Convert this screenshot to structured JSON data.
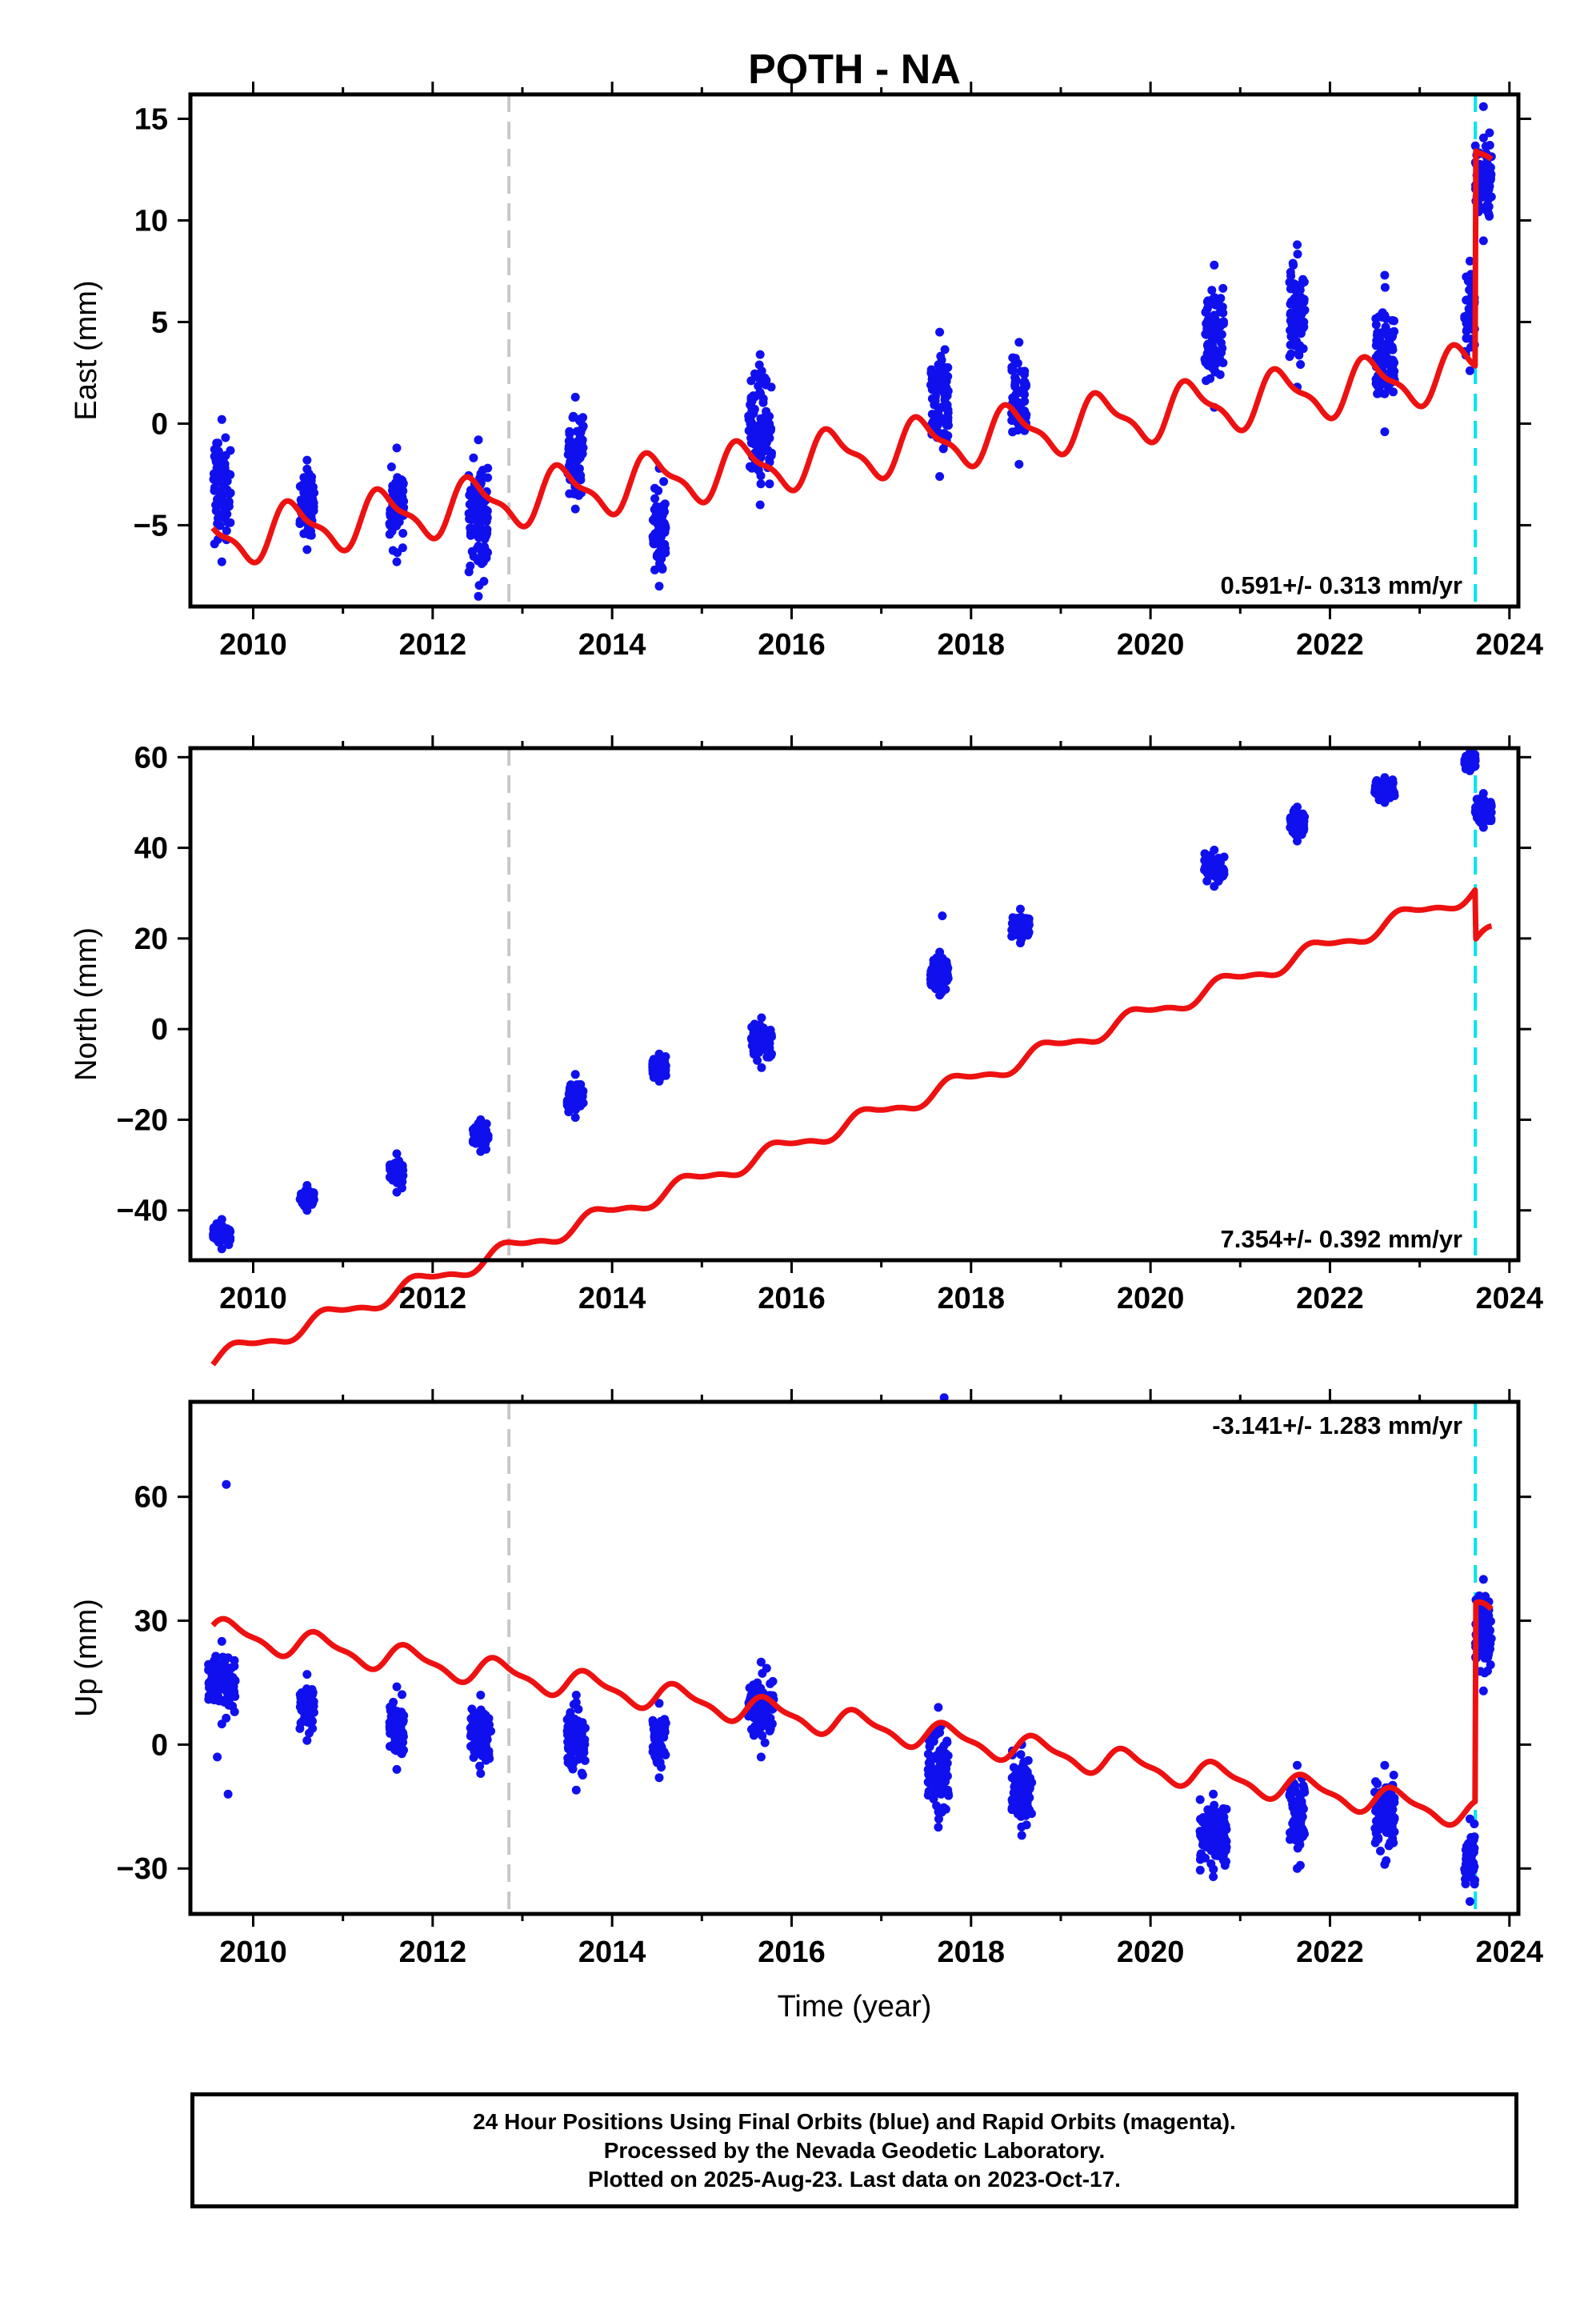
{
  "chart_data": [
    {
      "type": "scatter",
      "title": "POTH - NA",
      "ylabel": "East (mm)",
      "xlabel": "",
      "xlim": [
        2009.3,
        2024.1
      ],
      "ylim": [
        -9,
        16.2
      ],
      "x_ticks": [
        "2010",
        "2012",
        "2014",
        "2016",
        "2018",
        "2020",
        "2022",
        "2024"
      ],
      "x_tick_values": [
        2010,
        2012,
        2014,
        2016,
        2018,
        2020,
        2022,
        2024
      ],
      "y_ticks": [
        "−5",
        "0",
        "5",
        "10",
        "15"
      ],
      "y_tick_values": [
        -5,
        0,
        5,
        10,
        15
      ],
      "rate_label": "0.591+/- 0.313 mm/yr",
      "rate_position": "bottom-right",
      "vlines": [
        {
          "x": 2012.85,
          "color": "#c8c8c8"
        },
        {
          "x": 2023.62,
          "color": "#00e5ee"
        }
      ],
      "fit": {
        "color": "#ee1111",
        "rate": 0.591,
        "offset": -1.6,
        "amp": 1.2,
        "phase": 0.2,
        "jump": {
          "x": 2023.62,
          "size": 10.6
        }
      },
      "clusters": [
        {
          "x0": 2009.55,
          "x1": 2009.75,
          "ymin": -6.8,
          "ymax": 0.2
        },
        {
          "x0": 2010.52,
          "x1": 2010.68,
          "ymin": -6.2,
          "ymax": -1.8
        },
        {
          "x0": 2011.52,
          "x1": 2011.68,
          "ymin": -6.8,
          "ymax": -1.2
        },
        {
          "x0": 2012.4,
          "x1": 2012.62,
          "ymin": -8.5,
          "ymax": -0.8
        },
        {
          "x0": 2013.5,
          "x1": 2013.68,
          "ymin": -4.2,
          "ymax": 1.3
        },
        {
          "x0": 2014.45,
          "x1": 2014.6,
          "ymin": -8.0,
          "ymax": -2.2
        },
        {
          "x0": 2015.52,
          "x1": 2015.78,
          "ymin": -4.0,
          "ymax": 3.4
        },
        {
          "x0": 2017.55,
          "x1": 2017.75,
          "ymin": -2.6,
          "ymax": 4.5
        },
        {
          "x0": 2018.45,
          "x1": 2018.62,
          "ymin": -2.0,
          "ymax": 4.0
        },
        {
          "x0": 2020.6,
          "x1": 2020.82,
          "ymin": 0.8,
          "ymax": 7.8
        },
        {
          "x0": 2021.55,
          "x1": 2021.72,
          "ymin": 1.8,
          "ymax": 8.8
        },
        {
          "x0": 2022.5,
          "x1": 2022.72,
          "ymin": -0.4,
          "ymax": 7.3
        },
        {
          "x0": 2023.5,
          "x1": 2023.62,
          "ymin": 2.6,
          "ymax": 8.0
        },
        {
          "x0": 2023.62,
          "x1": 2023.8,
          "ymin": 9.0,
          "ymax": 15.6
        }
      ]
    },
    {
      "type": "scatter",
      "title": "",
      "ylabel": "North (mm)",
      "xlabel": "",
      "xlim": [
        2009.3,
        2024.1
      ],
      "ylim": [
        -51,
        62
      ],
      "x_ticks": [
        "2010",
        "2012",
        "2014",
        "2016",
        "2018",
        "2020",
        "2022",
        "2024"
      ],
      "x_tick_values": [
        2010,
        2012,
        2014,
        2016,
        2018,
        2020,
        2022,
        2024
      ],
      "y_ticks": [
        "−40",
        "−20",
        "0",
        "20",
        "40",
        "60"
      ],
      "y_tick_values": [
        -40,
        -20,
        0,
        20,
        40,
        60
      ],
      "rate_label": "7.354+/- 0.392 mm/yr",
      "rate_position": "bottom-right",
      "vlines": [
        {
          "x": 2012.85,
          "color": "#c8c8c8"
        },
        {
          "x": 2023.62,
          "color": "#00e5ee"
        }
      ],
      "fit": {
        "color": "#ee1111",
        "rate": 7.354,
        "offset": -22.0,
        "amp": 1.8,
        "phase": 0.6,
        "jump": {
          "x": 2023.62,
          "size": -11.0
        }
      },
      "clusters": [
        {
          "x0": 2009.55,
          "x1": 2009.75,
          "ymin": -48.5,
          "ymax": -42.0
        },
        {
          "x0": 2010.52,
          "x1": 2010.68,
          "ymin": -40.0,
          "ymax": -34.5
        },
        {
          "x0": 2011.52,
          "x1": 2011.68,
          "ymin": -36.0,
          "ymax": -27.5
        },
        {
          "x0": 2012.45,
          "x1": 2012.62,
          "ymin": -27.0,
          "ymax": -20.0
        },
        {
          "x0": 2013.5,
          "x1": 2013.68,
          "ymin": -19.5,
          "ymax": -10.0
        },
        {
          "x0": 2014.45,
          "x1": 2014.6,
          "ymin": -11.5,
          "ymax": -5.5
        },
        {
          "x0": 2015.55,
          "x1": 2015.78,
          "ymin": -8.5,
          "ymax": 2.5
        },
        {
          "x0": 2017.55,
          "x1": 2017.75,
          "ymin": 7.5,
          "ymax": 17.0
        },
        {
          "x0": 2018.45,
          "x1": 2018.65,
          "ymin": 19.0,
          "ymax": 26.5
        },
        {
          "x0": 2020.6,
          "x1": 2020.82,
          "ymin": 31.5,
          "ymax": 39.5
        },
        {
          "x0": 2021.55,
          "x1": 2021.72,
          "ymin": 41.5,
          "ymax": 49.0
        },
        {
          "x0": 2022.5,
          "x1": 2022.72,
          "ymin": 50.0,
          "ymax": 55.5
        },
        {
          "x0": 2023.5,
          "x1": 2023.62,
          "ymin": 57.0,
          "ymax": 61.0
        },
        {
          "x0": 2023.62,
          "x1": 2023.8,
          "ymin": 44.5,
          "ymax": 52.0
        }
      ],
      "outliers": [
        {
          "x": 2017.68,
          "y": 25.0
        }
      ]
    },
    {
      "type": "scatter",
      "title": "",
      "ylabel": "Up (mm)",
      "xlabel": "Time (year)",
      "xlim": [
        2009.3,
        2024.1
      ],
      "ylim": [
        -41,
        83
      ],
      "x_ticks": [
        "2010",
        "2012",
        "2014",
        "2016",
        "2018",
        "2020",
        "2022",
        "2024"
      ],
      "x_tick_values": [
        2010,
        2012,
        2014,
        2016,
        2018,
        2020,
        2022,
        2024
      ],
      "y_ticks": [
        "−30",
        "0",
        "30",
        "60"
      ],
      "y_tick_values": [
        -30,
        0,
        30,
        60
      ],
      "rate_label": "-3.141+/- 1.283 mm/yr",
      "rate_position": "top-right",
      "vlines": [
        {
          "x": 2012.85,
          "color": "#c8c8c8"
        },
        {
          "x": 2023.62,
          "color": "#00e5ee"
        }
      ],
      "fit": {
        "color": "#ee1111",
        "rate": -3.141,
        "offset": 5.5,
        "amp": 3.0,
        "phase": 0.5,
        "jump": {
          "x": 2023.62,
          "size": 48.0
        }
      },
      "clusters": [
        {
          "x0": 2009.5,
          "x1": 2009.8,
          "ymin": 5.0,
          "ymax": 25.0
        },
        {
          "x0": 2010.52,
          "x1": 2010.68,
          "ymin": 1.0,
          "ymax": 17.0
        },
        {
          "x0": 2011.52,
          "x1": 2011.68,
          "ymin": -6.0,
          "ymax": 14.0
        },
        {
          "x0": 2012.42,
          "x1": 2012.65,
          "ymin": -7.0,
          "ymax": 12.0
        },
        {
          "x0": 2013.5,
          "x1": 2013.7,
          "ymin": -11.0,
          "ymax": 12.0
        },
        {
          "x0": 2014.45,
          "x1": 2014.6,
          "ymin": -8.0,
          "ymax": 10.0
        },
        {
          "x0": 2015.52,
          "x1": 2015.8,
          "ymin": -3.0,
          "ymax": 20.0
        },
        {
          "x0": 2017.52,
          "x1": 2017.75,
          "ymin": -20.0,
          "ymax": 9.0
        },
        {
          "x0": 2018.45,
          "x1": 2018.68,
          "ymin": -22.0,
          "ymax": 0.0
        },
        {
          "x0": 2020.55,
          "x1": 2020.85,
          "ymin": -32.0,
          "ymax": -12.0
        },
        {
          "x0": 2021.55,
          "x1": 2021.72,
          "ymin": -30.0,
          "ymax": -5.0
        },
        {
          "x0": 2022.5,
          "x1": 2022.72,
          "ymin": -29.0,
          "ymax": -5.0
        },
        {
          "x0": 2023.5,
          "x1": 2023.62,
          "ymin": -38.0,
          "ymax": -18.0
        },
        {
          "x0": 2023.62,
          "x1": 2023.8,
          "ymin": 13.0,
          "ymax": 40.0
        }
      ],
      "outliers": [
        {
          "x": 2009.7,
          "y": 63.0
        },
        {
          "x": 2009.72,
          "y": -12.0
        },
        {
          "x": 2009.6,
          "y": -3.0
        },
        {
          "x": 2017.7,
          "y": 84.0
        }
      ]
    }
  ],
  "colors": {
    "data": "#1010ee",
    "fit": "#ee1111",
    "offset_line": "#c8c8c8",
    "equipment_line": "#00e5ee",
    "frame": "#000000"
  },
  "caption": {
    "line1": "24 Hour Positions Using Final Orbits (blue) and Rapid Orbits (magenta).",
    "line2": "Processed by the Nevada Geodetic Laboratory.",
    "line3": "Plotted on 2025-Aug-23. Last data on 2023-Oct-17."
  }
}
